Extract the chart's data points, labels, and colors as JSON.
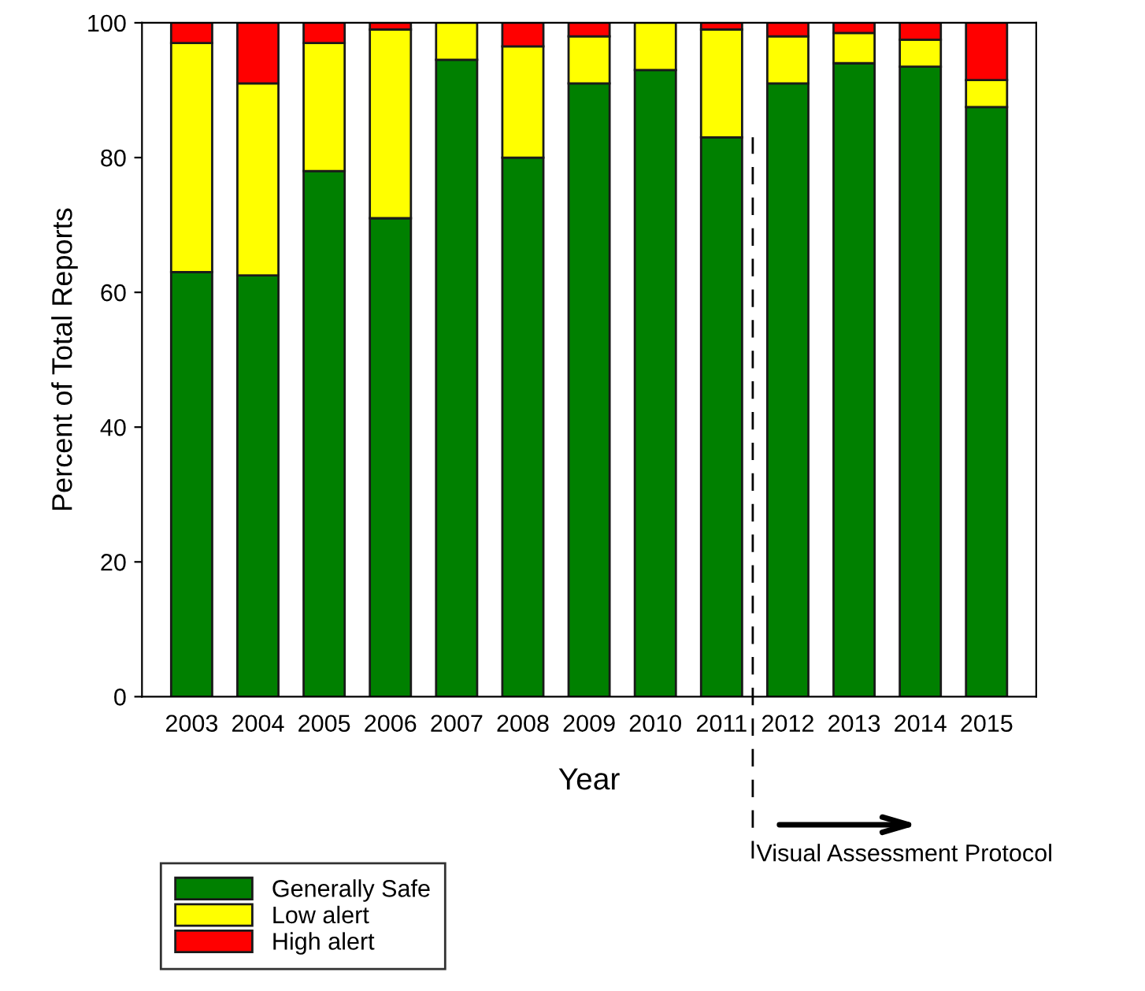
{
  "chart_data": {
    "type": "bar",
    "stacked": true,
    "xlabel": "Year",
    "ylabel": "Percent of Total Reports",
    "categories": [
      "2003",
      "2004",
      "2005",
      "2006",
      "2007",
      "2008",
      "2009",
      "2010",
      "2011",
      "2012",
      "2013",
      "2014",
      "2015"
    ],
    "series": [
      {
        "name": "Generally Safe",
        "color": "#008000",
        "values": [
          63,
          62.5,
          78,
          71,
          94.5,
          80,
          91,
          93,
          83,
          91,
          94,
          93.5,
          87.5
        ]
      },
      {
        "name": "Low alert",
        "color": "#ffff00",
        "values": [
          34,
          28.5,
          19,
          28,
          5.5,
          16.5,
          7,
          7,
          16,
          7,
          4.5,
          4,
          4
        ]
      },
      {
        "name": "High alert",
        "color": "#ff0000",
        "values": [
          3,
          9,
          3,
          1,
          null,
          3.5,
          2,
          null,
          1,
          2,
          1.5,
          2.5,
          8.5
        ]
      }
    ],
    "ylim": [
      0,
      100
    ],
    "yticks": [
      0,
      20,
      40,
      60,
      80,
      100
    ],
    "grid": false,
    "legend": "bottom left",
    "annotations": [
      "Visual Assessment Protocol"
    ]
  }
}
